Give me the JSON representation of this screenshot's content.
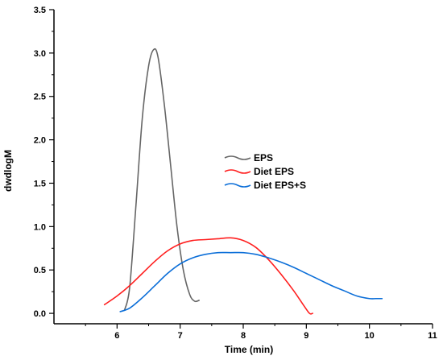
{
  "chart_data": {
    "type": "line",
    "title": "",
    "xlabel": "Time (min)",
    "ylabel": "dwdlogM",
    "xlim": [
      5,
      11
    ],
    "ylim": [
      -0.12,
      3.5
    ],
    "xticks": [
      6,
      7,
      8,
      9,
      10,
      11
    ],
    "yticks": [
      0.0,
      0.5,
      1.0,
      1.5,
      2.0,
      2.5,
      3.0,
      3.5
    ],
    "xtick_labels": [
      "6",
      "7",
      "8",
      "9",
      "10",
      "11"
    ],
    "ytick_labels": [
      "0.0",
      "0.5",
      "1.0",
      "1.5",
      "2.0",
      "2.5",
      "3.0",
      "3.5"
    ],
    "grid": false,
    "legend": "center-right",
    "series": [
      {
        "name": "EPS",
        "color": "#666666",
        "points": [
          [
            6.12,
            0.04
          ],
          [
            6.2,
            0.3
          ],
          [
            6.3,
            1.25
          ],
          [
            6.4,
            2.25
          ],
          [
            6.5,
            2.85
          ],
          [
            6.58,
            3.04
          ],
          [
            6.65,
            2.95
          ],
          [
            6.75,
            2.4
          ],
          [
            6.85,
            1.7
          ],
          [
            6.95,
            1.0
          ],
          [
            7.05,
            0.5
          ],
          [
            7.15,
            0.22
          ],
          [
            7.23,
            0.14
          ],
          [
            7.3,
            0.15
          ]
        ]
      },
      {
        "name": "Diet EPS",
        "color": "#ff1f1f",
        "points": [
          [
            5.8,
            0.1
          ],
          [
            6.0,
            0.2
          ],
          [
            6.2,
            0.32
          ],
          [
            6.4,
            0.46
          ],
          [
            6.6,
            0.6
          ],
          [
            6.8,
            0.72
          ],
          [
            7.0,
            0.8
          ],
          [
            7.2,
            0.84
          ],
          [
            7.4,
            0.85
          ],
          [
            7.6,
            0.86
          ],
          [
            7.8,
            0.87
          ],
          [
            8.0,
            0.84
          ],
          [
            8.2,
            0.76
          ],
          [
            8.4,
            0.62
          ],
          [
            8.6,
            0.45
          ],
          [
            8.8,
            0.26
          ],
          [
            8.95,
            0.1
          ],
          [
            9.05,
            0.0
          ],
          [
            9.1,
            0.0
          ]
        ]
      },
      {
        "name": "Diet EPS+S",
        "color": "#0b6ed8",
        "points": [
          [
            6.05,
            0.02
          ],
          [
            6.2,
            0.06
          ],
          [
            6.4,
            0.18
          ],
          [
            6.6,
            0.32
          ],
          [
            6.8,
            0.46
          ],
          [
            7.0,
            0.57
          ],
          [
            7.2,
            0.64
          ],
          [
            7.4,
            0.68
          ],
          [
            7.6,
            0.7
          ],
          [
            7.8,
            0.7
          ],
          [
            8.0,
            0.7
          ],
          [
            8.2,
            0.68
          ],
          [
            8.4,
            0.64
          ],
          [
            8.6,
            0.59
          ],
          [
            8.8,
            0.53
          ],
          [
            9.0,
            0.46
          ],
          [
            9.2,
            0.39
          ],
          [
            9.4,
            0.32
          ],
          [
            9.6,
            0.26
          ],
          [
            9.8,
            0.2
          ],
          [
            10.0,
            0.17
          ],
          [
            10.1,
            0.17
          ],
          [
            10.2,
            0.17
          ]
        ]
      }
    ]
  }
}
